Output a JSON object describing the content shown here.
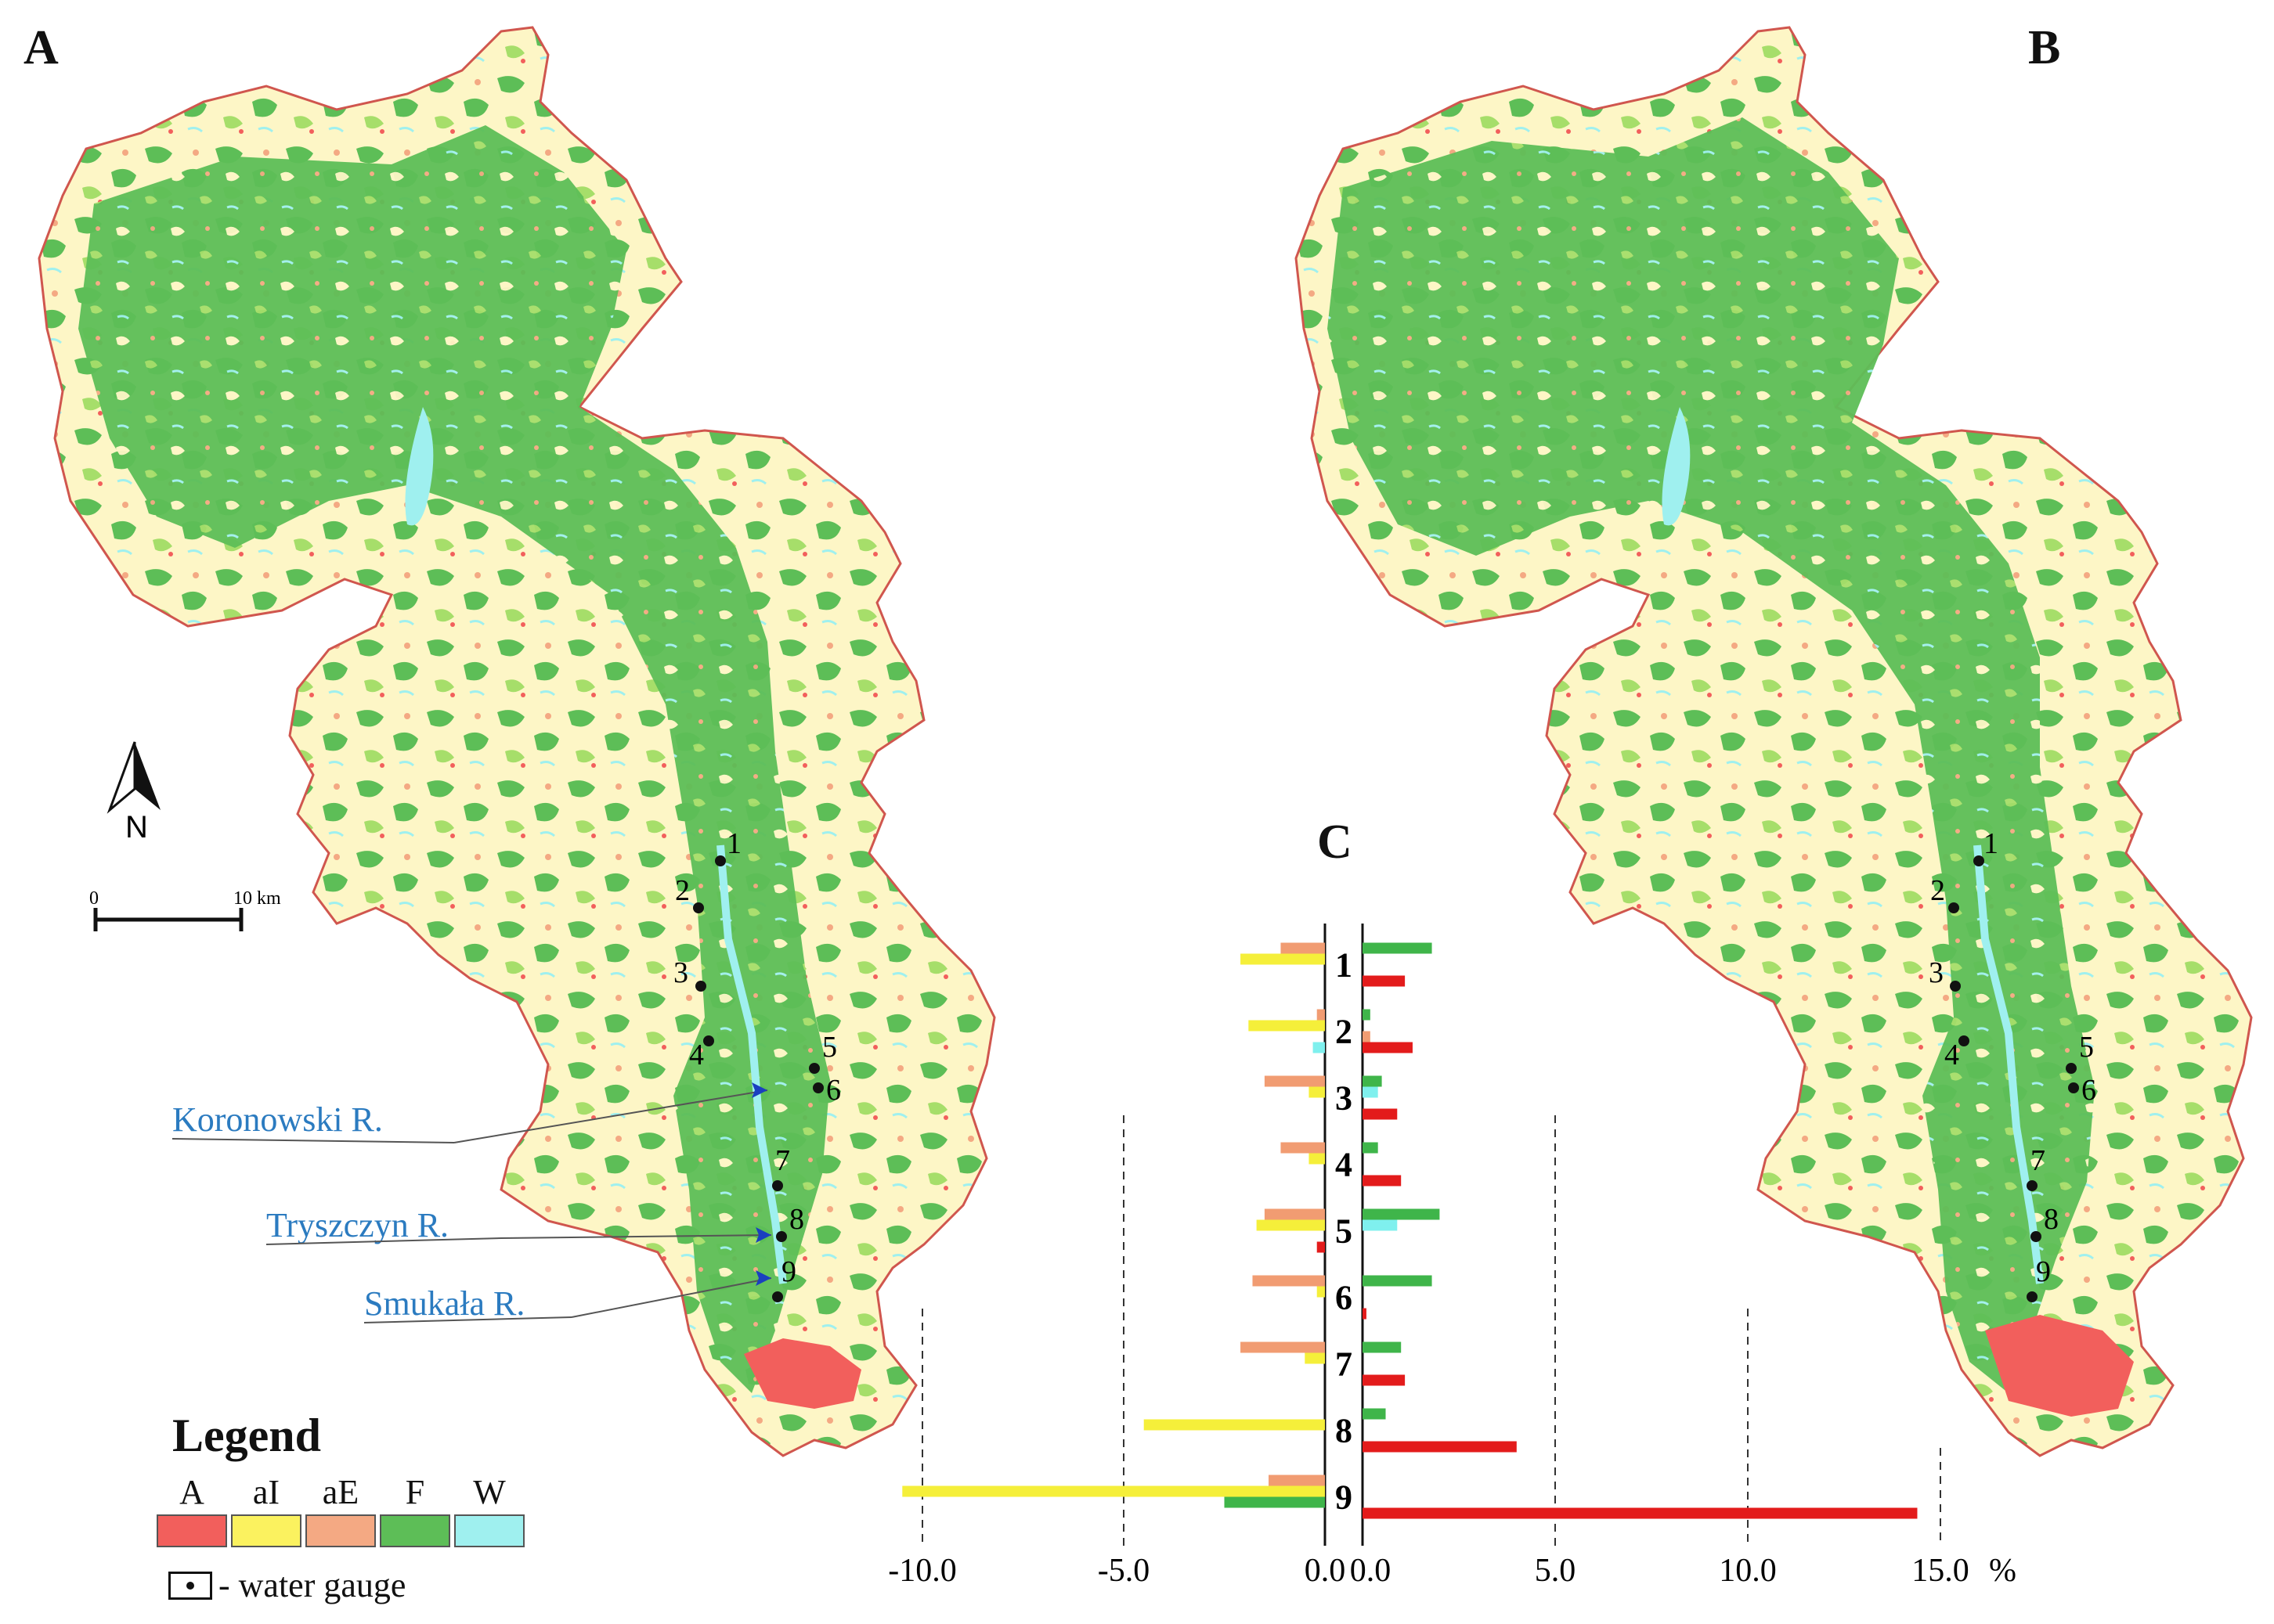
{
  "panels": {
    "a": "A",
    "b": "B",
    "c": "C"
  },
  "compass": {
    "letter": "N"
  },
  "scale_bar": {
    "start": "0",
    "end": "10 km"
  },
  "rivers": [
    "Koronowski R.",
    "Tryszczyn R.",
    "Smukała R."
  ],
  "gauges_map_a": [
    "1",
    "2",
    "3",
    "4",
    "5",
    "6",
    "7",
    "8",
    "9"
  ],
  "gauges_map_b": [
    "1",
    "2",
    "3",
    "4",
    "5",
    "6",
    "7",
    "8",
    "9"
  ],
  "legend": {
    "title": "Legend",
    "items": [
      {
        "code": "A",
        "color": "#f25f5c"
      },
      {
        "code": "aI",
        "color": "#fbf25f"
      },
      {
        "code": "aE",
        "color": "#f4a983"
      },
      {
        "code": "F",
        "color": "#5dbe57"
      },
      {
        "code": "W",
        "color": "#9ff0ef"
      }
    ],
    "gauge_label": "- water gauge"
  },
  "map_colors": {
    "forest": "#5dbe57",
    "forest_light": "#a6de6a",
    "farmland": "#fdf6c6",
    "urban": "#f25f5c",
    "water": "#9ff0ef",
    "boundary": "#d0564e"
  },
  "chart_data": {
    "type": "bar",
    "orientation": "horizontal",
    "title": "C",
    "unit": "%",
    "categories": [
      "1",
      "2",
      "3",
      "4",
      "5",
      "6",
      "7",
      "8",
      "9"
    ],
    "left_axis": {
      "ticks": [
        "-10.0",
        "-5.0",
        "0.0"
      ],
      "lim": [
        -10.5,
        0
      ]
    },
    "right_axis": {
      "ticks": [
        "0.0",
        "5.0",
        "10.0",
        "15.0"
      ],
      "lim": [
        0,
        15.5
      ]
    },
    "series_colors": {
      "aI": "#f5ef3a",
      "aE": "#f19c72",
      "F": "#3fb54a",
      "W": "#7ff0ee",
      "A": "#e31b1b"
    },
    "left_series": [
      {
        "name": "aE",
        "values": [
          -1.1,
          -0.2,
          -1.5,
          -1.1,
          -1.5,
          -1.8,
          -2.1,
          0,
          -1.4
        ]
      },
      {
        "name": "aI",
        "values": [
          -2.1,
          -1.9,
          -0.4,
          -0.4,
          -1.7,
          -0.2,
          -0.5,
          -4.5,
          -10.5
        ]
      },
      {
        "name": "F",
        "values": [
          0,
          0,
          0,
          0,
          0,
          0,
          0,
          0,
          -2.5
        ]
      },
      {
        "name": "W",
        "values": [
          0,
          -0.3,
          0,
          0,
          0,
          0,
          0,
          0,
          0
        ]
      }
    ],
    "right_series": [
      {
        "name": "F",
        "values": [
          1.8,
          0.2,
          0.5,
          0.4,
          2.0,
          1.8,
          1.0,
          0.6,
          0
        ]
      },
      {
        "name": "W",
        "values": [
          0,
          0,
          0.4,
          0,
          0.9,
          0,
          0,
          0,
          0
        ]
      },
      {
        "name": "aE",
        "values": [
          0,
          0.2,
          0,
          0,
          0,
          0,
          0,
          0,
          0
        ]
      },
      {
        "name": "A",
        "values": [
          1.1,
          1.3,
          0.9,
          1.0,
          -0.2,
          0.1,
          1.1,
          4.0,
          14.4
        ]
      }
    ]
  }
}
